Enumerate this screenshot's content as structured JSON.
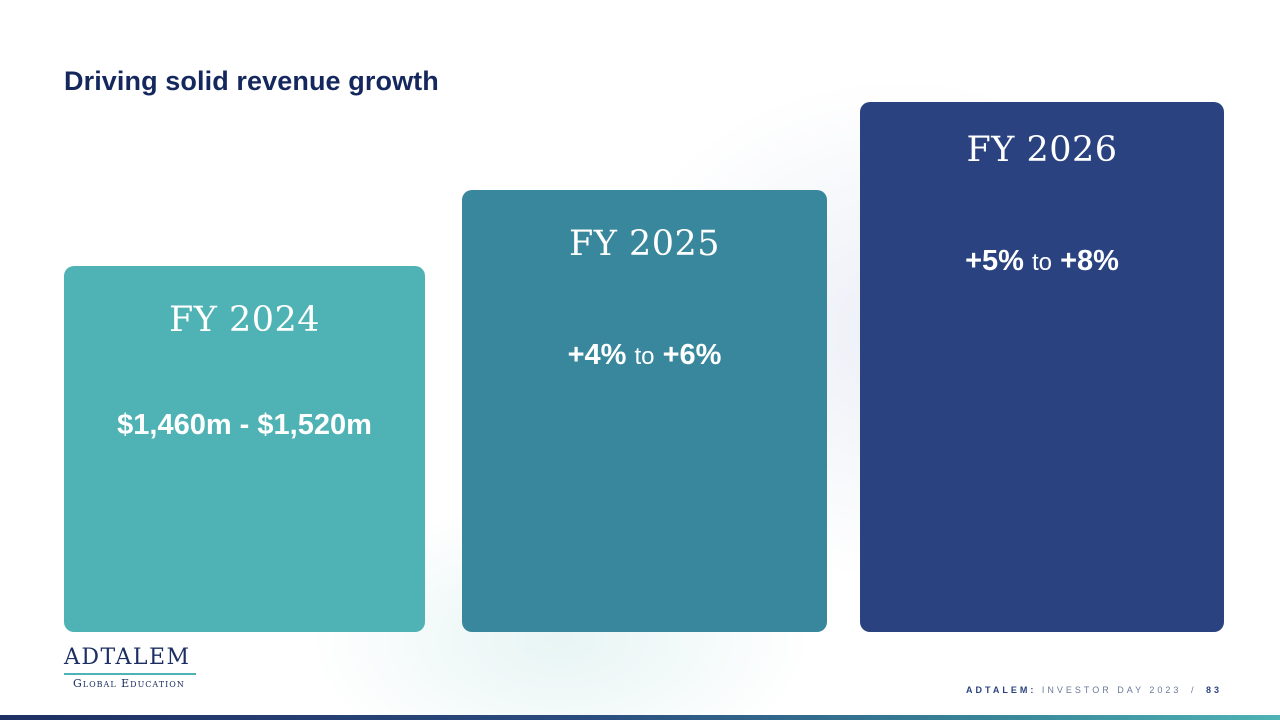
{
  "slide": {
    "title": "Driving solid revenue growth"
  },
  "cards": [
    {
      "label": "FY 2024",
      "value_text": "$1,460m - $1,520m",
      "color": "#4fb3b5"
    },
    {
      "label": "FY 2025",
      "low": "+4%",
      "joiner": "to",
      "high": "+6%",
      "color": "#39879d"
    },
    {
      "label": "FY 2026",
      "low": "+5%",
      "joiner": "to",
      "high": "+8%",
      "color": "#2a4380"
    }
  ],
  "logo": {
    "name": "ADTALEM",
    "tagline": "Global Education"
  },
  "footer": {
    "brand": "ADTALEM:",
    "event": "INVESTOR DAY 2023",
    "separator": "/",
    "page_number": "83"
  },
  "colors": {
    "title": "#14285e",
    "accent_teal": "#4fb3b5",
    "navy": "#2a4380"
  }
}
